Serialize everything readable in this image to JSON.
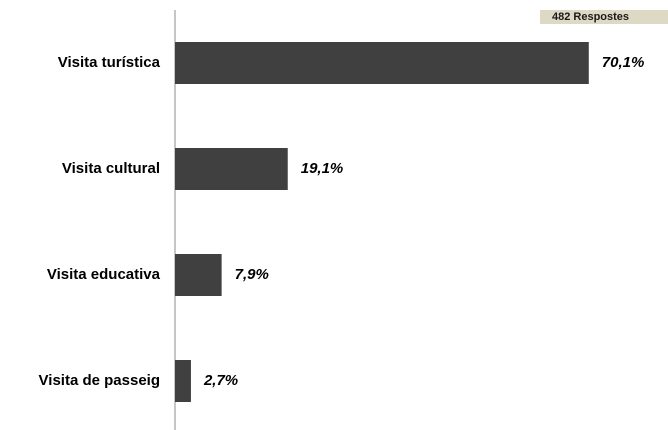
{
  "badge": {
    "responses": "482  Respostes"
  },
  "colors": {
    "bar": "#404040",
    "axis": "#8c8c8c",
    "badge_bg": "#ddd9c4"
  },
  "chart_data": {
    "type": "bar",
    "orientation": "horizontal",
    "categories": [
      "Visita turística",
      "Visita cultural",
      "Visita educativa",
      "Visita de passeig"
    ],
    "values": [
      70.1,
      19.1,
      7.9,
      2.7
    ],
    "value_labels": [
      "70,1%",
      "19,1%",
      "7,9%",
      "2,7%"
    ],
    "unit": "%",
    "xlim": [
      0,
      72
    ],
    "grid": false,
    "legend": "none"
  }
}
